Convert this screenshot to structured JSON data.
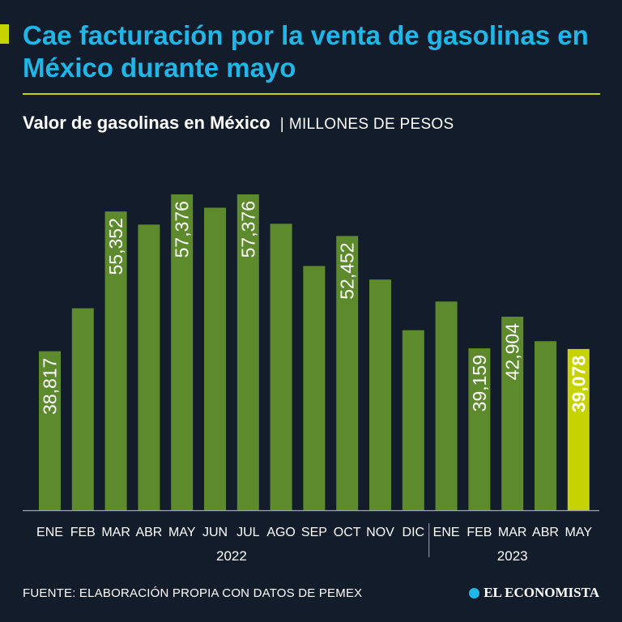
{
  "header": {
    "title": "Cae facturación por la venta de gasolinas en México durante mayo",
    "subtitle_main": "Valor de gasolinas en México",
    "subtitle_separator": "|",
    "subtitle_unit": "MILLONES DE PESOS"
  },
  "footer": {
    "source": "FUENTE: ELABORACIÓN PROPIA CON DATOS DE PEMEX",
    "brand": "EL ECONOMISTA"
  },
  "colors": {
    "background": "#131c2b",
    "title": "#1fb6e8",
    "accent": "#c6d300",
    "bar": "#5d8a2c",
    "highlight_bar": "#c6d300",
    "text": "#ffffff"
  },
  "chart_data": {
    "type": "bar",
    "title": "Valor de gasolinas en México",
    "ylabel": "MILLONES DE PESOS",
    "xlabel": "",
    "ylim": [
      0,
      60000
    ],
    "categories": [
      "ENE",
      "FEB",
      "MAR",
      "ABR",
      "MAY",
      "JUN",
      "JUL",
      "AGO",
      "SEP",
      "OCT",
      "NOV",
      "DIC",
      "ENE",
      "FEB",
      "MAR",
      "ABR",
      "MAY"
    ],
    "years": [
      {
        "label": "2022",
        "start": 0,
        "end": 11
      },
      {
        "label": "2023",
        "start": 12,
        "end": 16
      }
    ],
    "values": [
      38817,
      43900,
      55352,
      53800,
      57376,
      55800,
      57376,
      53900,
      48900,
      52452,
      47300,
      41300,
      44700,
      39159,
      42904,
      40000,
      39078
    ],
    "data_labels": [
      {
        "index": 0,
        "text": "38,817"
      },
      {
        "index": 2,
        "text": "55,352"
      },
      {
        "index": 4,
        "text": "57,376"
      },
      {
        "index": 6,
        "text": "57,376"
      },
      {
        "index": 9,
        "text": "52,452"
      },
      {
        "index": 13,
        "text": "39,159"
      },
      {
        "index": 14,
        "text": "42,904"
      },
      {
        "index": 16,
        "text": "39,078",
        "highlight": true
      }
    ],
    "highlight_index": 16
  }
}
